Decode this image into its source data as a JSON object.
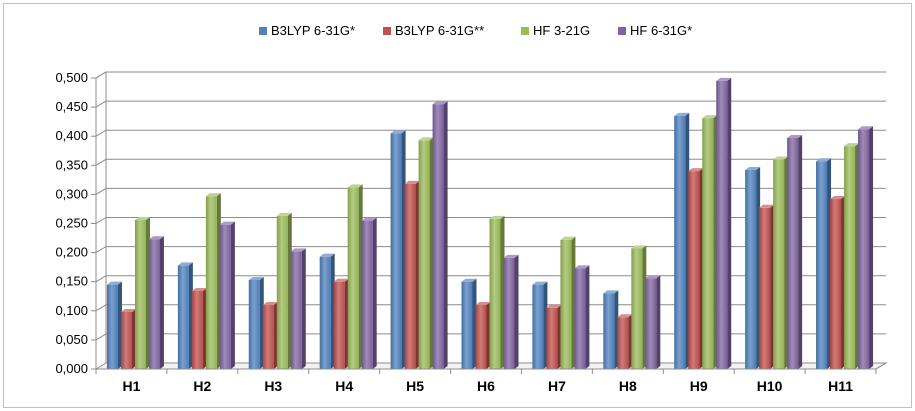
{
  "chart_data": {
    "type": "bar",
    "categories": [
      "H1",
      "H2",
      "H3",
      "H4",
      "H5",
      "H6",
      "H7",
      "H8",
      "H9",
      "H10",
      "H11"
    ],
    "series": [
      {
        "name": "B3LYP 6-31G*",
        "color": "#4f81bd",
        "values": [
          0.145,
          0.178,
          0.153,
          0.193,
          0.405,
          0.15,
          0.145,
          0.13,
          0.435,
          0.342,
          0.357
        ]
      },
      {
        "name": "B3LYP 6-31G**",
        "color": "#c0504d",
        "values": [
          0.098,
          0.134,
          0.11,
          0.15,
          0.318,
          0.11,
          0.105,
          0.089,
          0.34,
          0.277,
          0.292
        ]
      },
      {
        "name": "HF 3-21G",
        "color": "#9bbb59",
        "values": [
          0.256,
          0.297,
          0.263,
          0.312,
          0.393,
          0.258,
          0.222,
          0.207,
          0.431,
          0.36,
          0.383
        ]
      },
      {
        "name": "HF 6-31G*",
        "color": "#8064a2",
        "values": [
          0.223,
          0.248,
          0.202,
          0.255,
          0.455,
          0.191,
          0.173,
          0.156,
          0.495,
          0.397,
          0.412
        ]
      }
    ],
    "y_ticks": [
      "0,000",
      "0,050",
      "0,100",
      "0,150",
      "0,200",
      "0,250",
      "0,300",
      "0,350",
      "0,400",
      "0,450",
      "0,500"
    ],
    "ylim": [
      0,
      0.5
    ],
    "grid": true,
    "legend_position": "top"
  }
}
